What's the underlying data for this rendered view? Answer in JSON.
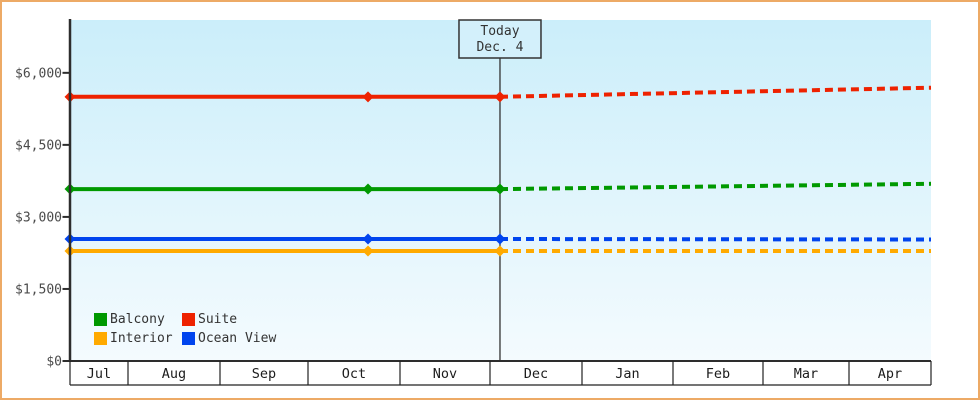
{
  "window": {
    "border_color": "#edaa66",
    "background": "#ffffff"
  },
  "chart_data": {
    "type": "line",
    "title": "",
    "description": "Cabin price history (solid) and projected prices (dotted) by cabin category",
    "x_axis": {
      "months": [
        "Jul",
        "Aug",
        "Sep",
        "Oct",
        "Nov",
        "Dec",
        "Jan",
        "Feb",
        "Mar",
        "Apr"
      ]
    },
    "y_axis": {
      "ylim": [
        0,
        7100
      ],
      "ticks": [
        {
          "value": 0,
          "label": "$0"
        },
        {
          "value": 1500,
          "label": "$1,500"
        },
        {
          "value": 3000,
          "label": "$3,000"
        },
        {
          "value": 4500,
          "label": "$4,500"
        },
        {
          "value": 6000,
          "label": "$6,000"
        }
      ]
    },
    "today": {
      "line1": "Today",
      "line2": "Dec. 4",
      "t": 0.4994
    },
    "series": [
      {
        "name": "Interior",
        "color": "#ffaa00",
        "solid": [
          [
            0,
            2290
          ],
          [
            0.3461,
            2290
          ],
          [
            0.4994,
            2290
          ]
        ],
        "projected": [
          [
            0.4994,
            2290
          ],
          [
            1,
            2290
          ]
        ]
      },
      {
        "name": "Ocean View",
        "color": "#0044ee",
        "solid": [
          [
            0,
            2540
          ],
          [
            0.3461,
            2540
          ],
          [
            0.4994,
            2540
          ]
        ],
        "projected": [
          [
            0.4994,
            2540
          ],
          [
            1,
            2530
          ]
        ]
      },
      {
        "name": "Balcony",
        "color": "#009900",
        "solid": [
          [
            0,
            3580
          ],
          [
            0.3461,
            3580
          ],
          [
            0.4994,
            3580
          ]
        ],
        "projected": [
          [
            0.4994,
            3580
          ],
          [
            1,
            3690
          ]
        ]
      },
      {
        "name": "Suite",
        "color": "#ee2200",
        "solid": [
          [
            0,
            5500
          ],
          [
            0.3461,
            5500
          ],
          [
            0.4994,
            5500
          ]
        ],
        "projected": [
          [
            0.4994,
            5500
          ],
          [
            1,
            5690
          ]
        ]
      }
    ],
    "legend": {
      "position": "bottom-left",
      "items": [
        {
          "label": "Balcony",
          "color": "#009900"
        },
        {
          "label": "Suite",
          "color": "#ee2200"
        },
        {
          "label": "Interior",
          "color": "#ffaa00"
        },
        {
          "label": "Ocean View",
          "color": "#0044ee"
        }
      ]
    },
    "grid": "off",
    "plot_background": {
      "top": "#cbeefa",
      "bottom": "#f4fbfe"
    }
  }
}
